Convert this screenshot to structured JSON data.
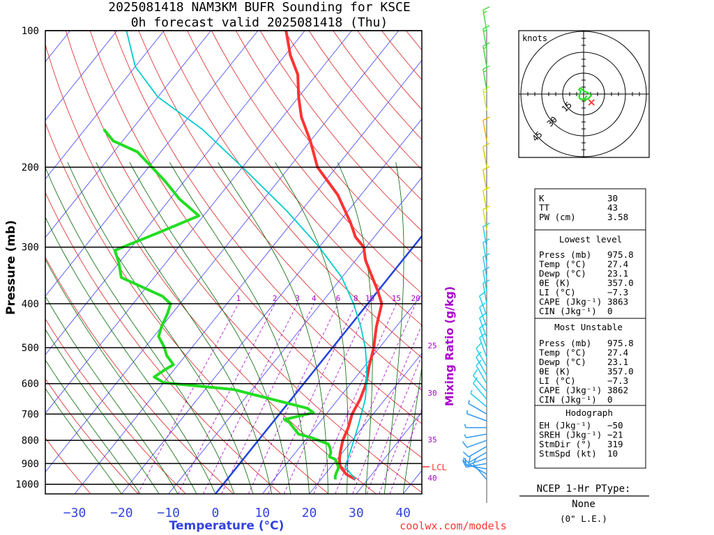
{
  "header": {
    "title_line1": "2025081418 NAM3KM BUFR Sounding for KSCE",
    "title_line2": "0h forecast valid 2025081418 (Thu)"
  },
  "footer": {
    "credit": "coolwx.com/models"
  },
  "colors": {
    "temperature": "#ff3333",
    "dewpoint": "#22dd22",
    "parcel": "#00cccc",
    "freezing_line": "#2244dd",
    "isotherms": "#4444ff",
    "dry_adiabats": "#dd2222",
    "moist_adiabats": "#006600",
    "mixing_ratio": "#aa00cc",
    "lcl": "#ff3333"
  },
  "chart_data": {
    "type": "line",
    "xlabel": "Temperature (°C)",
    "ylabel": "Pressure (mb)",
    "secondary_label": "Mixing Ratio (g/kg)",
    "x_ticks": [
      "−30",
      "−20",
      "−10",
      "0",
      "10",
      "20",
      "30",
      "40"
    ],
    "y_ticks": [
      "100",
      "200",
      "300",
      "400",
      "500",
      "600",
      "700",
      "800",
      "900",
      "1000"
    ],
    "mixing_ratio_labels": [
      "1",
      "2",
      "3",
      "4",
      "6",
      "8",
      "10",
      "15",
      "20",
      "25",
      "30",
      "35",
      "40"
    ],
    "lcl_label": "LCL",
    "lcl_pressure": 915,
    "series": [
      {
        "name": "temperature",
        "points": [
          [
            27.4,
            976
          ],
          [
            24.5,
            950
          ],
          [
            22,
            915
          ],
          [
            21.3,
            900
          ],
          [
            20.5,
            880
          ],
          [
            19.5,
            850
          ],
          [
            18,
            800
          ],
          [
            17,
            750
          ],
          [
            15.5,
            700
          ],
          [
            14.7,
            650
          ],
          [
            13.3,
            600
          ],
          [
            11,
            550
          ],
          [
            8.8,
            500
          ],
          [
            5.8,
            450
          ],
          [
            3,
            400
          ],
          [
            0,
            375
          ],
          [
            -3.5,
            350
          ],
          [
            -8,
            320
          ],
          [
            -10.5,
            300
          ],
          [
            -14,
            285
          ],
          [
            -17.5,
            265
          ],
          [
            -25,
            230
          ],
          [
            -34,
            200
          ],
          [
            -40,
            175
          ],
          [
            -46,
            155
          ],
          [
            -50,
            140
          ],
          [
            -54,
            125
          ],
          [
            -59,
            113
          ],
          [
            -62,
            105
          ],
          [
            -64,
            100
          ]
        ]
      },
      {
        "name": "dewpoint",
        "points": [
          [
            23.1,
            976
          ],
          [
            22.5,
            960
          ],
          [
            22.2,
            945
          ],
          [
            21.8,
            920
          ],
          [
            20.5,
            895
          ],
          [
            19.5,
            880
          ],
          [
            18,
            870
          ],
          [
            17.5,
            850
          ],
          [
            16.5,
            830
          ],
          [
            15.5,
            815
          ],
          [
            11,
            790
          ],
          [
            7.5,
            775
          ],
          [
            3.5,
            730
          ],
          [
            2,
            720
          ],
          [
            7,
            695
          ],
          [
            5,
            680
          ],
          [
            -14,
            618
          ],
          [
            -30,
            597
          ],
          [
            -33,
            580
          ],
          [
            -32,
            560
          ],
          [
            -31,
            545
          ],
          [
            -34,
            520
          ],
          [
            -36,
            498
          ],
          [
            -39,
            472
          ],
          [
            -40,
            450
          ],
          [
            -41,
            420
          ],
          [
            -42,
            400
          ],
          [
            -45,
            385
          ],
          [
            -57,
            350
          ],
          [
            -60,
            325
          ],
          [
            -63,
            305
          ],
          [
            -57,
            280
          ],
          [
            -51,
            256
          ],
          [
            -58,
            235
          ],
          [
            -64,
            215
          ],
          [
            -70,
            198
          ],
          [
            -75,
            185
          ],
          [
            -82,
            175
          ],
          [
            -86,
            165
          ]
        ]
      },
      {
        "name": "parcel",
        "points": [
          [
            27.4,
            976
          ],
          [
            23,
            915
          ],
          [
            21.6,
            850
          ],
          [
            19,
            750
          ],
          [
            15.8,
            650
          ],
          [
            13.4,
            600
          ],
          [
            10.5,
            550
          ],
          [
            7,
            500
          ],
          [
            2.5,
            450
          ],
          [
            -3,
            400
          ],
          [
            -10,
            350
          ],
          [
            -20,
            300
          ],
          [
            -33,
            250
          ],
          [
            -50,
            200
          ],
          [
            -65,
            165
          ],
          [
            -80,
            140
          ],
          [
            -90,
            120
          ],
          [
            -98,
            100
          ]
        ]
      }
    ],
    "wind_barbs_kt": [
      {
        "p": 976,
        "kt": 10,
        "dir": 319
      },
      {
        "p": 950,
        "kt": 10,
        "dir": 300
      },
      {
        "p": 925,
        "kt": 10,
        "dir": 280
      },
      {
        "p": 900,
        "kt": 10,
        "dir": 260
      },
      {
        "p": 875,
        "kt": 10,
        "dir": 250
      },
      {
        "p": 850,
        "kt": 10,
        "dir": 240
      },
      {
        "p": 825,
        "kt": 10,
        "dir": 240
      },
      {
        "p": 800,
        "kt": 10,
        "dir": 250
      },
      {
        "p": 775,
        "kt": 5,
        "dir": 260
      },
      {
        "p": 750,
        "kt": 5,
        "dir": 270
      },
      {
        "p": 725,
        "kt": 5,
        "dir": 290
      },
      {
        "p": 700,
        "kt": 5,
        "dir": 300
      },
      {
        "p": 675,
        "kt": 5,
        "dir": 310
      },
      {
        "p": 650,
        "kt": 10,
        "dir": 320
      },
      {
        "p": 625,
        "kt": 10,
        "dir": 320
      },
      {
        "p": 600,
        "kt": 10,
        "dir": 330
      },
      {
        "p": 575,
        "kt": 10,
        "dir": 330
      },
      {
        "p": 550,
        "kt": 10,
        "dir": 330
      },
      {
        "p": 525,
        "kt": 10,
        "dir": 340
      },
      {
        "p": 500,
        "kt": 10,
        "dir": 340
      },
      {
        "p": 475,
        "kt": 10,
        "dir": 340
      },
      {
        "p": 450,
        "kt": 10,
        "dir": 340
      },
      {
        "p": 425,
        "kt": 10,
        "dir": 340
      },
      {
        "p": 400,
        "kt": 10,
        "dir": 350
      },
      {
        "p": 375,
        "kt": 10,
        "dir": 350
      },
      {
        "p": 350,
        "kt": 10,
        "dir": 350
      },
      {
        "p": 325,
        "kt": 10,
        "dir": 350
      },
      {
        "p": 300,
        "kt": 10,
        "dir": 350
      },
      {
        "p": 275,
        "kt": 10,
        "dir": 350
      },
      {
        "p": 250,
        "kt": 10,
        "dir": 350
      },
      {
        "p": 225,
        "kt": 10,
        "dir": 350
      },
      {
        "p": 200,
        "kt": 10,
        "dir": 350
      },
      {
        "p": 175,
        "kt": 10,
        "dir": 350
      },
      {
        "p": 150,
        "kt": 15,
        "dir": 350
      },
      {
        "p": 135,
        "kt": 15,
        "dir": 350
      },
      {
        "p": 120,
        "kt": 15,
        "dir": 350
      },
      {
        "p": 110,
        "kt": 15,
        "dir": 350
      },
      {
        "p": 100,
        "kt": 15,
        "dir": 350
      }
    ]
  },
  "hodograph": {
    "units_label": "knots",
    "ring_labels": [
      "15",
      "30",
      "45"
    ],
    "points_kt": [
      [
        4,
        -2
      ],
      [
        3,
        -4
      ],
      [
        2,
        -6
      ],
      [
        -2,
        -7
      ],
      [
        -5,
        -6
      ],
      [
        -6,
        -3
      ],
      [
        -5,
        0
      ],
      [
        -4,
        4
      ],
      [
        -6,
        6
      ],
      [
        -4,
        8
      ],
      [
        -1,
        5
      ],
      [
        2,
        3
      ],
      [
        5,
        2
      ],
      [
        8,
        0
      ],
      [
        10,
        -2
      ],
      [
        8,
        -4
      ],
      [
        6,
        -6
      ],
      [
        4,
        -7
      ],
      [
        2,
        -8
      ],
      [
        0,
        -8
      ]
    ],
    "storm_motion_kt": [
      6.6,
      7.5
    ]
  },
  "indices": {
    "top": [
      {
        "label": "K",
        "value": "30"
      },
      {
        "label": "TT",
        "value": "43"
      },
      {
        "label": "PW (cm)",
        "value": "3.58"
      }
    ],
    "lowest_level": {
      "title": "Lowest level",
      "rows": [
        {
          "label": "Press (mb)",
          "value": "975.8"
        },
        {
          "label": "Temp (°C)",
          "value": "27.4"
        },
        {
          "label": "Dewp (°C)",
          "value": "23.1"
        },
        {
          "label": "θE (K)",
          "value": "357.0"
        },
        {
          "label": "LI (°C)",
          "value": "−7.3"
        },
        {
          "label": "CAPE (Jkg⁻¹)",
          "value": "3863"
        },
        {
          "label": "CIN (Jkg⁻¹)",
          "value": "0"
        }
      ]
    },
    "most_unstable": {
      "title": "Most Unstable",
      "rows": [
        {
          "label": "Press (mb)",
          "value": "975.8"
        },
        {
          "label": "Temp (°C)",
          "value": "27.4"
        },
        {
          "label": "Dewp (°C)",
          "value": "23.1"
        },
        {
          "label": "θE (K)",
          "value": "357.0"
        },
        {
          "label": "LI (°C)",
          "value": "−7.3"
        },
        {
          "label": "CAPE (Jkg⁻¹)",
          "value": "3862"
        },
        {
          "label": "CIN (Jkg⁻¹)",
          "value": "0"
        }
      ]
    },
    "hodograph_params": {
      "title": "Hodograph",
      "rows": [
        {
          "label": "EH (Jkg⁻¹)",
          "value": "−50"
        },
        {
          "label": "SREH (Jkg⁻¹)",
          "value": "−21"
        },
        {
          "label": "StmDir (°)",
          "value": "319"
        },
        {
          "label": "StmSpd (kt)",
          "value": "10"
        }
      ]
    }
  },
  "ptype": {
    "title": "NCEP 1-Hr PType:",
    "value": "None",
    "note": "(0\" L.E.)"
  }
}
